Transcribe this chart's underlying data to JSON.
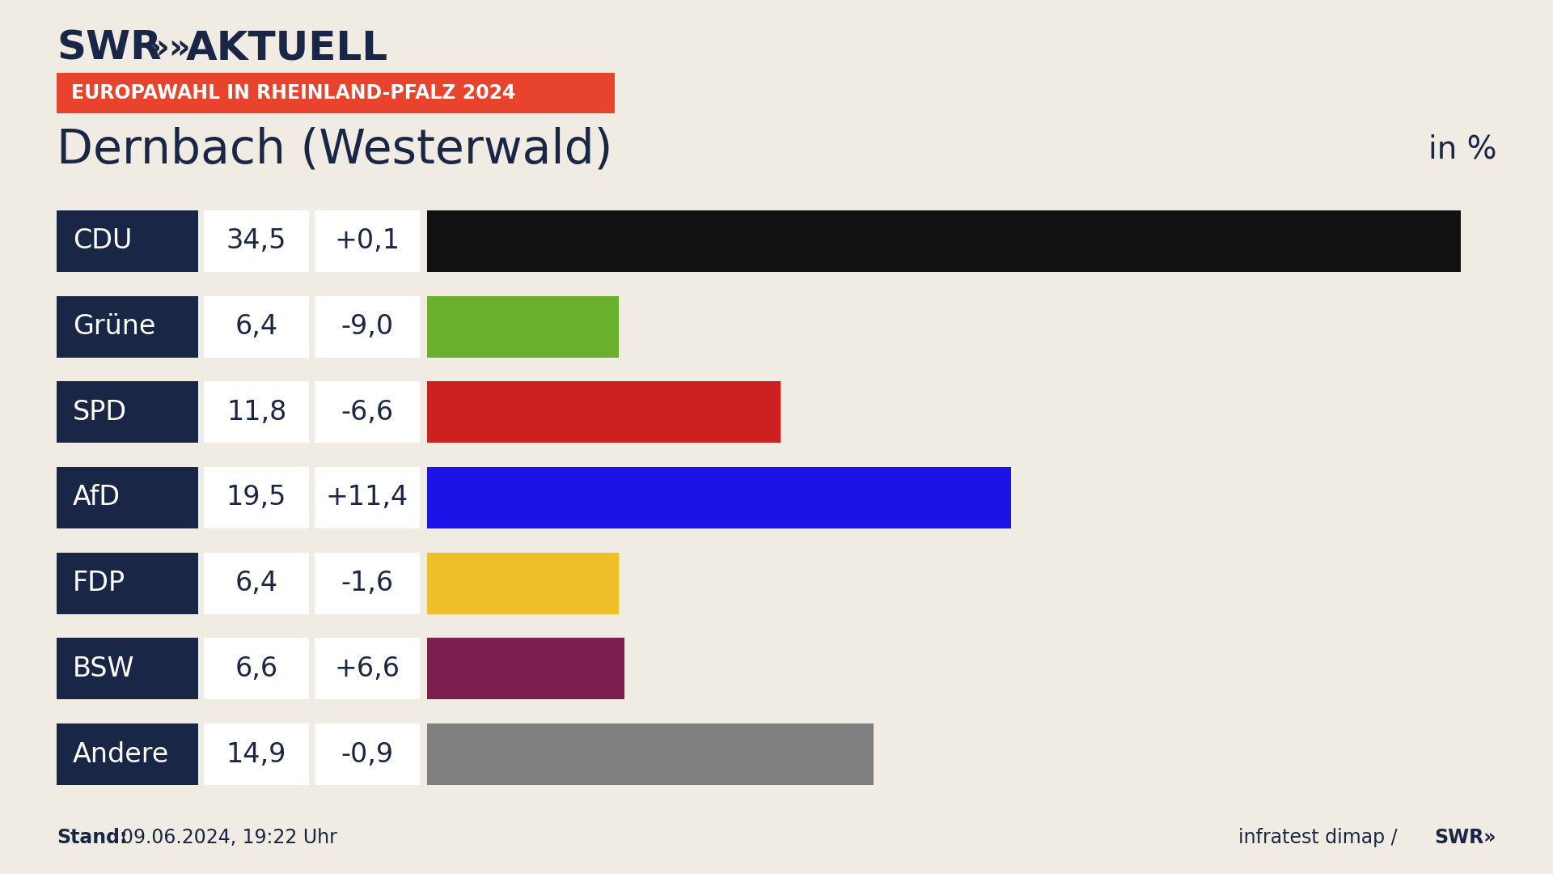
{
  "background_color": "#f0ebe3",
  "title_location": "Dernbach (Westerwald)",
  "subtitle_badge": "EUROPAWAHL IN RHEINLAND-PFALZ 2024",
  "subtitle_badge_bg": "#e8432d",
  "subtitle_badge_fg": "#ffffff",
  "in_percent_label": "in %",
  "stand_text": "Stand:",
  "stand_date": "09.06.2024, 19:22 Uhr",
  "footer_right": "infratest dimap / SWR»",
  "label_box_color": "#1a2645",
  "label_text_color": "#ffffff",
  "value_box_color": "#ffffff",
  "value_text_color": "#1a2645",
  "parties": [
    "CDU",
    "Grüne",
    "SPD",
    "AfD",
    "FDP",
    "BSW",
    "Andere"
  ],
  "values": [
    34.5,
    6.4,
    11.8,
    19.5,
    6.4,
    6.6,
    14.9
  ],
  "changes": [
    "+0,1",
    "-9,0",
    "-6,6",
    "+11,4",
    "-1,6",
    "+6,6",
    "-0,9"
  ],
  "bar_colors": [
    "#111111",
    "#6ab02c",
    "#cc1f1f",
    "#1c14e6",
    "#f0be28",
    "#7a1f4e",
    "#7f7f7f"
  ],
  "max_value": 36.5
}
